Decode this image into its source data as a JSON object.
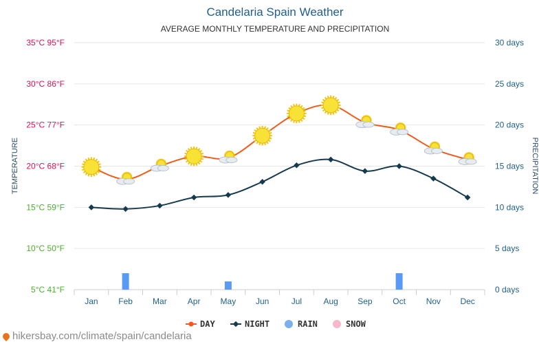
{
  "chart_data": {
    "type": "line",
    "title": "Candelaria Spain Weather",
    "subtitle": "AVERAGE MONTHLY TEMPERATURE AND PRECIPITATION",
    "ylabel": "TEMPERATURE",
    "y2label": "PRECIPITATION",
    "categories": [
      "Jan",
      "Feb",
      "Mar",
      "Apr",
      "May",
      "Jun",
      "Jul",
      "Aug",
      "Sep",
      "Oct",
      "Nov",
      "Dec"
    ],
    "ylim": [
      5,
      35
    ],
    "y2lim": [
      0,
      30
    ],
    "yticks": [
      {
        "value": 35,
        "label": "35°C 95°F",
        "color": "#e0105a"
      },
      {
        "value": 30,
        "label": "30°C 86°F",
        "color": "#e0105a"
      },
      {
        "value": 25,
        "label": "25°C 77°F",
        "color": "#e0105a"
      },
      {
        "value": 20,
        "label": "20°C 68°F",
        "color": "#e0105a"
      },
      {
        "value": 15,
        "label": "15°C 59°F",
        "color": "#4caf2a"
      },
      {
        "value": 10,
        "label": "10°C 50°F",
        "color": "#4caf2a"
      },
      {
        "value": 5,
        "label": "5°C 41°F",
        "color": "#4caf2a"
      }
    ],
    "y2ticks": [
      {
        "value": 30,
        "label": "30 days"
      },
      {
        "value": 25,
        "label": "25 days"
      },
      {
        "value": 20,
        "label": "20 days"
      },
      {
        "value": 15,
        "label": "15 days"
      },
      {
        "value": 10,
        "label": "10 days"
      },
      {
        "value": 5,
        "label": "5 days"
      },
      {
        "value": 0,
        "label": "0 days"
      }
    ],
    "series": [
      {
        "name": "DAY",
        "color": "#f05a1a",
        "values": [
          19.9,
          18.4,
          20.0,
          21.2,
          21.0,
          23.7,
          26.4,
          27.4,
          25.3,
          24.4,
          22.1,
          20.8
        ]
      },
      {
        "name": "NIGHT",
        "color": "#153a4f",
        "values": [
          15.0,
          14.8,
          15.2,
          16.2,
          16.5,
          18.1,
          20.1,
          20.8,
          19.4,
          20.0,
          18.5,
          16.2
        ]
      }
    ],
    "bars": {
      "name": "RAIN",
      "color": "#5a9af5",
      "values": [
        0,
        2,
        0,
        0,
        1,
        0,
        0,
        0,
        0,
        2,
        0,
        0
      ]
    },
    "icons": [
      "sun",
      "sun-cloud",
      "sun-cloud",
      "sun",
      "sun-cloud",
      "sun",
      "sun",
      "sun",
      "sun-cloud",
      "sun-cloud",
      "sun-cloud",
      "sun-cloud"
    ],
    "legend": [
      {
        "label": "DAY",
        "color": "#f05a1a",
        "marker": "line-dot"
      },
      {
        "label": "NIGHT",
        "color": "#153a4f",
        "marker": "line-diamond"
      },
      {
        "label": "RAIN",
        "color": "#7ab0ec",
        "marker": "circle"
      },
      {
        "label": "SNOW",
        "color": "#f7b8cc",
        "marker": "circle"
      }
    ]
  },
  "source": {
    "text": "hikersbay.com/climate/spain/candelaria",
    "icon": "location-pin-icon"
  }
}
